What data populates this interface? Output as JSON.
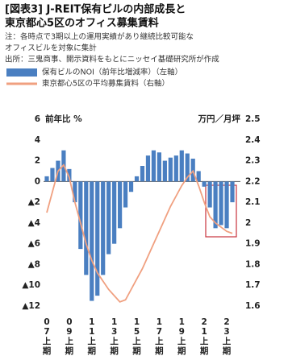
{
  "chart_data": {
    "type": "bar",
    "title": [
      "[図表3] J-REIT保有ビルの内部成長と",
      "東京都心5区のオフィス募集賃料"
    ],
    "notes": [
      "注：各時点で3期以上の運用実績があり継続比較可能な",
      "オフィスビルを対象に集計",
      "出所：三鬼商事、開示資料をもとにニッセイ基礎研究所が作成"
    ],
    "y_axis_label": "前年比 %",
    "y2_axis_label": "万円／月坪",
    "categories": [
      "07上期",
      null,
      null,
      null,
      "09上期",
      null,
      null,
      null,
      "11上期",
      null,
      null,
      null,
      "13上期",
      null,
      null,
      null,
      "15上期",
      null,
      null,
      null,
      "17上期",
      null,
      null,
      null,
      "19上期",
      null,
      null,
      null,
      "21上期",
      null,
      null,
      null,
      "23上期",
      null
    ],
    "series": [
      {
        "name": "保有ビルのNOI（前年比増減率）（左軸）",
        "color": "#4a7fc1",
        "type": "bar",
        "values": [
          0.5,
          1.3,
          2.0,
          3.0,
          1.2,
          -2.0,
          -6.5,
          -9.0,
          -11.5,
          -11.0,
          -9.0,
          -7.0,
          -6.0,
          -4.5,
          -2.5,
          -1.0,
          0.5,
          1.5,
          2.5,
          3.0,
          2.8,
          2.0,
          2.3,
          2.5,
          3.0,
          2.7,
          2.2,
          1.0,
          -0.5,
          -2.5,
          -4.5,
          -4.2,
          -4.5,
          -2.0
        ]
      },
      {
        "name": "東京都心5区の平均募集賃料（右軸）",
        "color": "#f0a080",
        "type": "line",
        "axis": "y2",
        "values": [
          2.05,
          2.15,
          2.25,
          2.28,
          2.22,
          2.1,
          2.0,
          1.9,
          1.82,
          1.76,
          1.72,
          1.68,
          1.65,
          1.62,
          1.63,
          1.68,
          1.73,
          1.78,
          1.84,
          1.9,
          1.96,
          2.02,
          2.08,
          2.13,
          2.18,
          2.22,
          2.25,
          2.18,
          2.1,
          2.03,
          2.0,
          1.98,
          1.96,
          1.95
        ]
      }
    ],
    "ylim": [
      -12,
      6
    ],
    "yticks": [
      6,
      4,
      2,
      0,
      {
        "value": -2,
        "label": "▲2"
      },
      {
        "value": -4,
        "label": "▲4"
      },
      {
        "value": -6,
        "label": "▲6"
      },
      {
        "value": -8,
        "label": "▲8"
      },
      {
        "value": -10,
        "label": "▲10"
      },
      {
        "value": -12,
        "label": "▲12"
      }
    ],
    "y2lim": [
      1.6,
      2.5
    ],
    "y2ticks": [
      2.5,
      2.4,
      2.3,
      2.2,
      2.1,
      2.0,
      1.9,
      1.8,
      1.7,
      1.6
    ]
  }
}
